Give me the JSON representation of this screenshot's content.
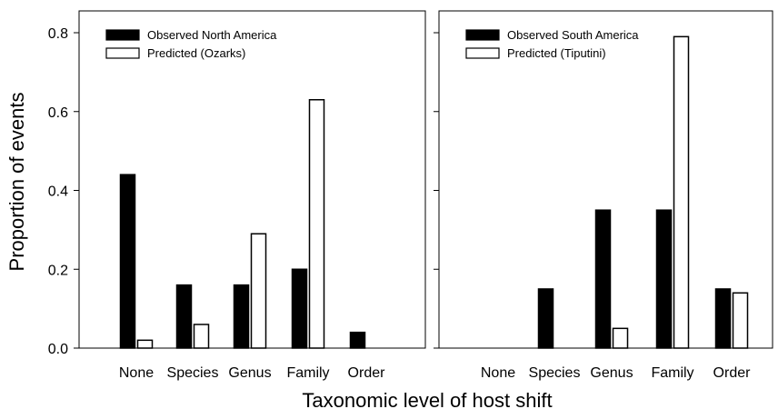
{
  "chart_data": [
    {
      "type": "bar",
      "categories": [
        "None",
        "Species",
        "Genus",
        "Family",
        "Order"
      ],
      "series": [
        {
          "name": "Observed North America",
          "values": [
            0.44,
            0.16,
            0.16,
            0.2,
            0.04
          ]
        },
        {
          "name": "Predicted (Ozarks)",
          "values": [
            0.02,
            0.06,
            0.29,
            0.63,
            0.0
          ]
        }
      ],
      "ylabel": "Proportion of events",
      "ylim": [
        0,
        0.8
      ],
      "yticks": [
        "0.0",
        "0.2",
        "0.4",
        "0.6",
        "0.8"
      ],
      "legend": "top-left",
      "series_colors": [
        "#000000",
        "#ffffff"
      ]
    },
    {
      "type": "bar",
      "categories": [
        "None",
        "Species",
        "Genus",
        "Family",
        "Order"
      ],
      "series": [
        {
          "name": "Observed South America",
          "values": [
            0.0,
            0.15,
            0.35,
            0.35,
            0.15
          ]
        },
        {
          "name": "Predicted (Tiputini)",
          "values": [
            0.0,
            0.0,
            0.05,
            0.79,
            0.14
          ]
        }
      ],
      "ylim": [
        0,
        0.8
      ],
      "legend": "top-left",
      "series_colors": [
        "#000000",
        "#ffffff"
      ]
    }
  ],
  "shared_xlabel": "Taxonomic level of host shift"
}
